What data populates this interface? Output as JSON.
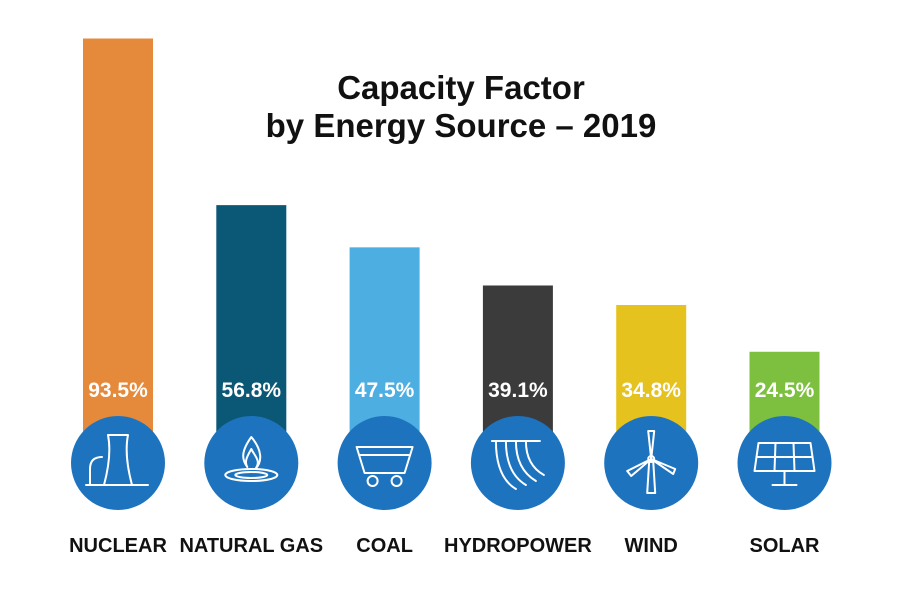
{
  "chart_data": {
    "type": "bar",
    "title": [
      "Capacity Factor",
      "by Energy Source – 2019"
    ],
    "categories": [
      "NUCLEAR",
      "NATURAL GAS",
      "COAL",
      "HYDROPOWER",
      "WIND",
      "SOLAR"
    ],
    "values": [
      93.5,
      56.8,
      47.5,
      39.1,
      34.8,
      24.5
    ],
    "value_labels": [
      "93.5%",
      "56.8%",
      "47.5%",
      "39.1%",
      "34.8%",
      "24.5%"
    ],
    "colors": [
      "#E58A3A",
      "#0A5876",
      "#4DAEE2",
      "#3B3B3B",
      "#E6C21E",
      "#7DBF3E"
    ],
    "icons": [
      "cooling-tower-icon",
      "flame-icon",
      "mine-cart-icon",
      "dam-icon",
      "wind-turbine-icon",
      "solar-panel-icon"
    ],
    "icon_circle_color": "#1E73BE",
    "unit": "%",
    "ylim": [
      0,
      100
    ],
    "xlabel": "",
    "ylabel": "",
    "grid": false,
    "legend": "none"
  }
}
